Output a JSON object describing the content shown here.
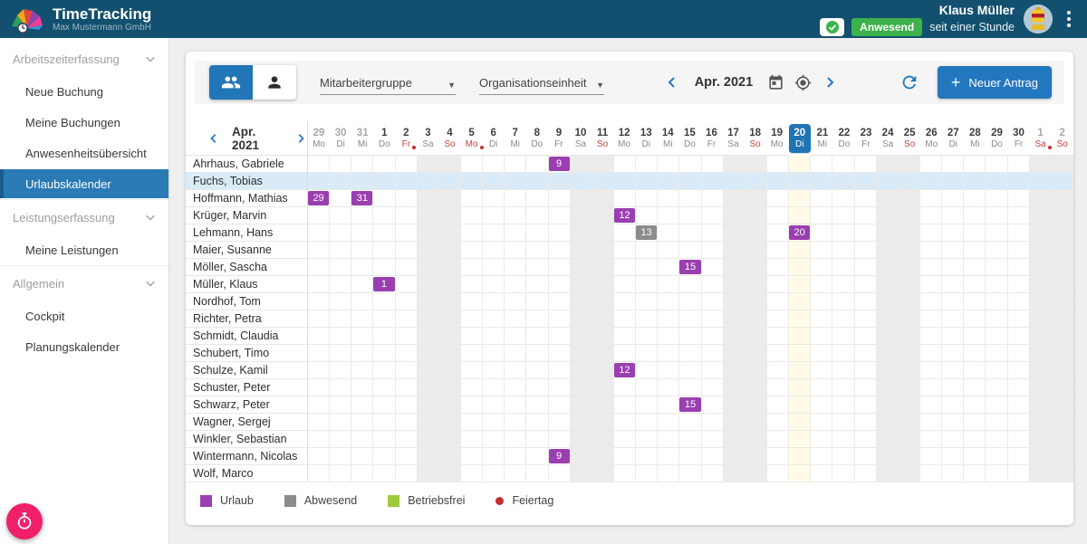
{
  "colors": {
    "header_bg": "#13506F",
    "accent_blue": "#2377BE",
    "today_highlight": "#1F74B5",
    "active_nav": "#2A7AB5",
    "urlaub_purple": "#9A3FB0",
    "abwesend_gray": "#8C8C8C",
    "betriebsfrei_green": "#9DCB3B",
    "feiertag_red": "#C5302C",
    "presence_green": "#3DB14B",
    "fab_pink": "#F01F6A",
    "weekend_bg": "#ECECEC",
    "today_col_bg": "#FEFCE8",
    "row_highlight_bg": "#DAEBF7"
  },
  "header": {
    "app_title": "TimeTracking",
    "company": "Max Mustermann GmbH",
    "presence_status": "Anwesend",
    "presence_duration": "seit einer Stunde",
    "user_name": "Klaus Müller"
  },
  "sidebar": {
    "active_item": "Urlaubskalender",
    "sections": [
      {
        "label": "Arbeitszeiterfassung",
        "items": [
          {
            "id": "neue-buchung",
            "label": "Neue Buchung"
          },
          {
            "id": "meine-buchungen",
            "label": "Meine Buchungen"
          },
          {
            "id": "anwesenheitsuebersicht",
            "label": "Anwesenheitsübersicht"
          },
          {
            "id": "urlaubskalender",
            "label": "Urlaubskalender"
          }
        ]
      },
      {
        "label": "Leistungserfassung",
        "items": [
          {
            "id": "meine-leistungen",
            "label": "Meine Leistungen"
          }
        ]
      },
      {
        "label": "Allgemein",
        "items": [
          {
            "id": "cockpit",
            "label": "Cockpit"
          },
          {
            "id": "planungskalender",
            "label": "Planungskalender"
          }
        ]
      }
    ]
  },
  "toolbar": {
    "group_filter": "Mitarbeitergruppe",
    "org_filter": "Organisationseinheit",
    "period": "Apr. 2021",
    "new_request": "Neuer Antrag"
  },
  "calendar": {
    "month_label": "Apr. 2021",
    "days": [
      {
        "num": "29",
        "dow": "Mo",
        "muted": true
      },
      {
        "num": "30",
        "dow": "Di",
        "muted": true
      },
      {
        "num": "31",
        "dow": "Mi",
        "muted": true
      },
      {
        "num": "1",
        "dow": "Do"
      },
      {
        "num": "2",
        "dow": "Fr",
        "red": true,
        "dot": true
      },
      {
        "num": "3",
        "dow": "Sa",
        "weekend": true
      },
      {
        "num": "4",
        "dow": "So",
        "weekend": true,
        "red": true
      },
      {
        "num": "5",
        "dow": "Mo",
        "red": true,
        "dot": true
      },
      {
        "num": "6",
        "dow": "Di"
      },
      {
        "num": "7",
        "dow": "Mi"
      },
      {
        "num": "8",
        "dow": "Do"
      },
      {
        "num": "9",
        "dow": "Fr"
      },
      {
        "num": "10",
        "dow": "Sa",
        "weekend": true
      },
      {
        "num": "11",
        "dow": "So",
        "weekend": true,
        "red": true
      },
      {
        "num": "12",
        "dow": "Mo"
      },
      {
        "num": "13",
        "dow": "Di"
      },
      {
        "num": "14",
        "dow": "Mi"
      },
      {
        "num": "15",
        "dow": "Do"
      },
      {
        "num": "16",
        "dow": "Fr"
      },
      {
        "num": "17",
        "dow": "Sa",
        "weekend": true
      },
      {
        "num": "18",
        "dow": "So",
        "weekend": true,
        "red": true
      },
      {
        "num": "19",
        "dow": "Mo"
      },
      {
        "num": "20",
        "dow": "Di",
        "today": true
      },
      {
        "num": "21",
        "dow": "Mi"
      },
      {
        "num": "22",
        "dow": "Do"
      },
      {
        "num": "23",
        "dow": "Fr"
      },
      {
        "num": "24",
        "dow": "Sa",
        "weekend": true
      },
      {
        "num": "25",
        "dow": "So",
        "weekend": true,
        "red": true
      },
      {
        "num": "26",
        "dow": "Mo"
      },
      {
        "num": "27",
        "dow": "Di"
      },
      {
        "num": "28",
        "dow": "Mi"
      },
      {
        "num": "29",
        "dow": "Do"
      },
      {
        "num": "30",
        "dow": "Fr"
      },
      {
        "num": "1",
        "dow": "Sa",
        "muted": true,
        "weekend": true,
        "red": true,
        "dot": true
      },
      {
        "num": "2",
        "dow": "So",
        "muted": true,
        "weekend": true,
        "red": true
      }
    ],
    "employees": [
      {
        "name": "Ahrhaus, Gabriele",
        "entries": [
          {
            "col": 12,
            "label": "9",
            "type": "urlaub"
          }
        ]
      },
      {
        "name": "Fuchs, Tobias",
        "highlighted": true,
        "entries": []
      },
      {
        "name": "Hoffmann, Mathias",
        "entries": [
          {
            "col": 1,
            "label": "29",
            "type": "urlaub"
          },
          {
            "col": 3,
            "label": "31",
            "type": "urlaub"
          }
        ]
      },
      {
        "name": "Krüger, Marvin",
        "entries": [
          {
            "col": 15,
            "label": "12",
            "type": "urlaub"
          }
        ]
      },
      {
        "name": "Lehmann, Hans",
        "entries": [
          {
            "col": 16,
            "label": "13",
            "type": "abwesend"
          },
          {
            "col": 23,
            "label": "20",
            "type": "urlaub"
          }
        ]
      },
      {
        "name": "Maier, Susanne",
        "entries": []
      },
      {
        "name": "Möller, Sascha",
        "entries": [
          {
            "col": 18,
            "label": "15",
            "type": "urlaub"
          }
        ]
      },
      {
        "name": "Müller, Klaus",
        "entries": [
          {
            "col": 4,
            "label": "1",
            "type": "urlaub"
          }
        ]
      },
      {
        "name": "Nordhof, Tom",
        "entries": []
      },
      {
        "name": "Richter, Petra",
        "entries": []
      },
      {
        "name": "Schmidt, Claudia",
        "entries": []
      },
      {
        "name": "Schubert, Timo",
        "entries": []
      },
      {
        "name": "Schulze, Kamil",
        "entries": [
          {
            "col": 15,
            "label": "12",
            "type": "urlaub"
          }
        ]
      },
      {
        "name": "Schuster, Peter",
        "entries": []
      },
      {
        "name": "Schwarz, Peter",
        "entries": [
          {
            "col": 18,
            "label": "15",
            "type": "urlaub"
          }
        ]
      },
      {
        "name": "Wagner, Sergej",
        "entries": []
      },
      {
        "name": "Winkler, Sebastian",
        "entries": []
      },
      {
        "name": "Wintermann, Nicolas",
        "entries": [
          {
            "col": 12,
            "label": "9",
            "type": "urlaub"
          }
        ]
      },
      {
        "name": "Wolf, Marco",
        "entries": []
      }
    ],
    "legend": [
      {
        "label": "Urlaub",
        "color": "#9A3FB0",
        "shape": "square"
      },
      {
        "label": "Abwesend",
        "color": "#8C8C8C",
        "shape": "square"
      },
      {
        "label": "Betriebsfrei",
        "color": "#9DCB3B",
        "shape": "square"
      },
      {
        "label": "Feiertag",
        "color": "#C5302C",
        "shape": "dot"
      }
    ]
  }
}
